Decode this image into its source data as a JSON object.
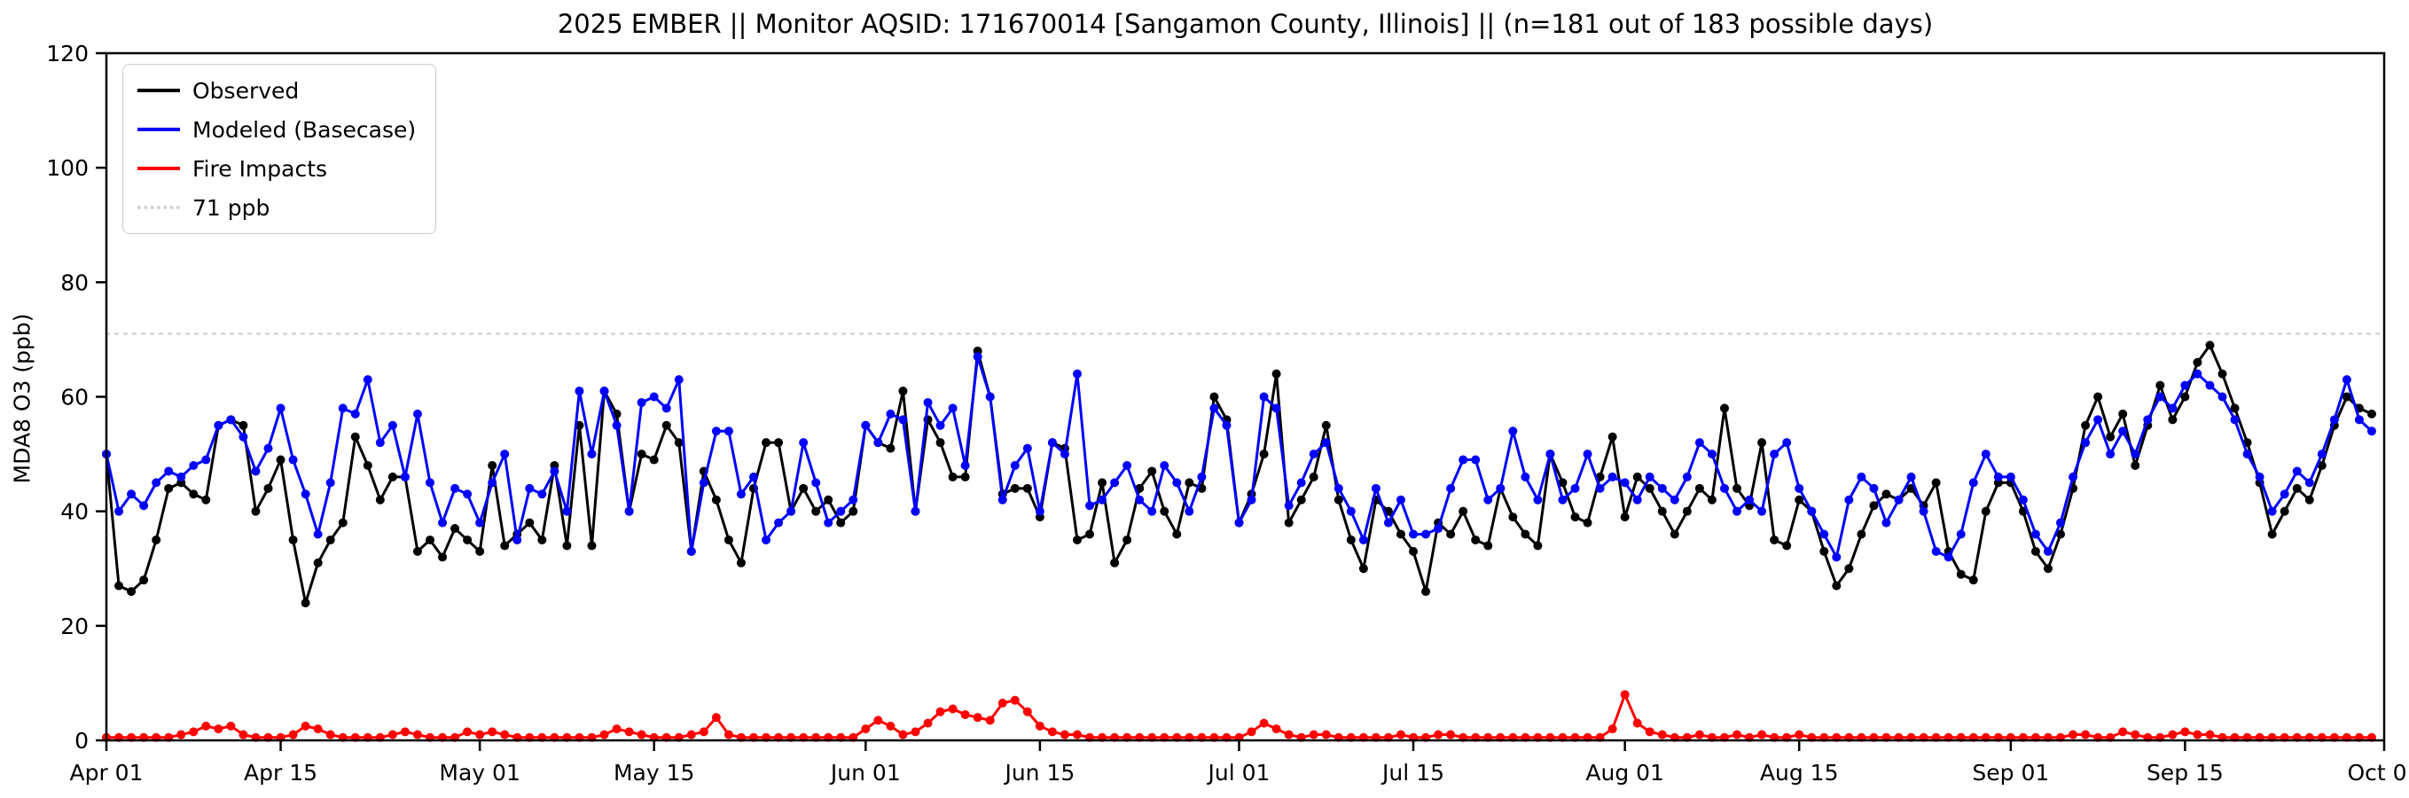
{
  "chart_data": {
    "type": "line",
    "title": "2025 EMBER || Monitor AQSID: 171670014 [Sangamon County, Illinois] || (n=181 out of 183 possible days)",
    "ylabel": "MDA8 O3 (ppb)",
    "xlabel": "",
    "ylim": [
      0,
      120
    ],
    "xlim_days": [
      0,
      183
    ],
    "grid": false,
    "legend_position": "upper-left",
    "yticks": [
      0,
      20,
      40,
      60,
      80,
      100,
      120
    ],
    "xticks": [
      {
        "day": 0,
        "label": "Apr 01"
      },
      {
        "day": 14,
        "label": "Apr 15"
      },
      {
        "day": 30,
        "label": "May 01"
      },
      {
        "day": 44,
        "label": "May 15"
      },
      {
        "day": 61,
        "label": "Jun 01"
      },
      {
        "day": 75,
        "label": "Jun 15"
      },
      {
        "day": 91,
        "label": "Jul 01"
      },
      {
        "day": 105,
        "label": "Jul 15"
      },
      {
        "day": 122,
        "label": "Aug 01"
      },
      {
        "day": 136,
        "label": "Aug 15"
      },
      {
        "day": 153,
        "label": "Sep 01"
      },
      {
        "day": 167,
        "label": "Sep 15"
      },
      {
        "day": 183,
        "label": "Oct 01"
      }
    ],
    "reference_line": {
      "value": 71,
      "label": "71 ppb",
      "color": "#d3d3d3",
      "style": "dotted"
    },
    "series": [
      {
        "name": "Observed",
        "color": "#000000",
        "values": [
          50,
          27,
          26,
          28,
          35,
          44,
          45,
          43,
          42,
          55,
          56,
          55,
          40,
          44,
          49,
          35,
          24,
          31,
          35,
          38,
          53,
          48,
          42,
          46,
          46,
          33,
          35,
          32,
          37,
          35,
          33,
          48,
          34,
          36,
          38,
          35,
          48,
          34,
          55,
          34,
          61,
          57,
          40,
          50,
          49,
          55,
          52,
          33,
          47,
          42,
          35,
          31,
          44,
          52,
          52,
          40,
          44,
          40,
          42,
          38,
          40,
          55,
          52,
          51,
          61,
          40,
          56,
          52,
          46,
          46,
          68,
          60,
          43,
          44,
          44,
          39,
          52,
          51,
          35,
          36,
          45,
          31,
          35,
          44,
          47,
          40,
          36,
          45,
          44,
          60,
          56,
          38,
          43,
          50,
          64,
          38,
          42,
          46,
          55,
          42,
          35,
          30,
          42,
          40,
          36,
          33,
          26,
          38,
          36,
          40,
          35,
          34,
          44,
          39,
          36,
          34,
          50,
          45,
          39,
          38,
          46,
          53,
          39,
          46,
          44,
          40,
          36,
          40,
          44,
          42,
          58,
          44,
          41,
          52,
          35,
          34,
          42,
          40,
          33,
          27,
          30,
          36,
          41,
          43,
          42,
          44,
          41,
          45,
          33,
          29,
          28,
          40,
          45,
          45,
          40,
          33,
          30,
          36,
          44,
          55,
          60,
          53,
          57,
          48,
          55,
          62,
          56,
          60,
          66,
          69,
          64,
          58,
          52,
          45,
          36,
          40,
          44,
          42,
          48,
          55,
          60,
          58,
          57
        ]
      },
      {
        "name": "Modeled (Basecase)",
        "color": "#0000ff",
        "values": [
          50,
          40,
          43,
          41,
          45,
          47,
          46,
          48,
          49,
          55,
          56,
          53,
          47,
          51,
          58,
          49,
          43,
          36,
          45,
          58,
          57,
          63,
          52,
          55,
          46,
          57,
          45,
          38,
          44,
          43,
          38,
          45,
          50,
          35,
          44,
          43,
          47,
          40,
          61,
          50,
          61,
          55,
          40,
          59,
          60,
          58,
          63,
          33,
          45,
          54,
          54,
          43,
          46,
          35,
          38,
          40,
          52,
          45,
          38,
          40,
          42,
          55,
          52,
          57,
          56,
          40,
          59,
          55,
          58,
          48,
          67,
          60,
          42,
          48,
          51,
          40,
          52,
          50,
          64,
          41,
          42,
          45,
          48,
          42,
          40,
          48,
          45,
          40,
          46,
          58,
          55,
          38,
          42,
          60,
          58,
          41,
          45,
          50,
          52,
          44,
          40,
          35,
          44,
          38,
          42,
          36,
          36,
          37,
          44,
          49,
          49,
          42,
          44,
          54,
          46,
          42,
          50,
          42,
          44,
          50,
          44,
          46,
          45,
          42,
          46,
          44,
          42,
          46,
          52,
          50,
          44,
          40,
          42,
          40,
          50,
          52,
          44,
          40,
          36,
          32,
          42,
          46,
          44,
          38,
          42,
          46,
          40,
          33,
          32,
          36,
          45,
          50,
          46,
          46,
          42,
          36,
          33,
          38,
          46,
          52,
          56,
          50,
          54,
          50,
          56,
          60,
          58,
          62,
          64,
          62,
          60,
          56,
          50,
          46,
          40,
          43,
          47,
          45,
          50,
          56,
          63,
          56,
          54
        ]
      },
      {
        "name": "Fire Impacts",
        "color": "#ff0000",
        "values": [
          0.5,
          0.5,
          0.5,
          0.5,
          0.5,
          0.5,
          1,
          1.5,
          2.5,
          2,
          2.5,
          1,
          0.5,
          0.5,
          0.5,
          1,
          2.5,
          2,
          1,
          0.5,
          0.5,
          0.5,
          0.5,
          1,
          1.5,
          1,
          0.5,
          0.5,
          0.5,
          1.5,
          1,
          1.5,
          1,
          0.5,
          0.5,
          0.5,
          0.5,
          0.5,
          0.5,
          0.5,
          1,
          2,
          1.5,
          1,
          0.5,
          0.5,
          0.5,
          1,
          1.5,
          4,
          1,
          0.5,
          0.5,
          0.5,
          0.5,
          0.5,
          0.5,
          0.5,
          0.5,
          0.5,
          0.5,
          2,
          3.5,
          2.5,
          1,
          1.5,
          3,
          5,
          5.5,
          4.5,
          4,
          3.5,
          6.5,
          7,
          5,
          2.5,
          1.5,
          1,
          1,
          0.5,
          0.5,
          0.5,
          0.5,
          0.5,
          0.5,
          0.5,
          0.5,
          0.5,
          0.5,
          0.5,
          0.5,
          0.5,
          1.5,
          3,
          2,
          1,
          0.5,
          1,
          1,
          0.5,
          0.5,
          0.5,
          0.5,
          0.5,
          1,
          0.5,
          0.5,
          1,
          1,
          0.5,
          0.5,
          0.5,
          0.5,
          0.5,
          0.5,
          0.5,
          0.5,
          0.5,
          0.5,
          0.5,
          0.5,
          2,
          8,
          3,
          1.5,
          1,
          0.5,
          0.5,
          1,
          0.5,
          0.5,
          1,
          0.5,
          1,
          0.5,
          0.5,
          1,
          0.5,
          0.5,
          0.5,
          0.5,
          0.5,
          0.5,
          0.5,
          0.5,
          0.5,
          0.5,
          0.5,
          0.5,
          0.5,
          0.5,
          0.5,
          0.5,
          0.5,
          0.5,
          0.5,
          0.5,
          0.5,
          1,
          1,
          0.5,
          0.5,
          1.5,
          1,
          0.5,
          0.5,
          1,
          1.5,
          1,
          1,
          0.5,
          0.5,
          0.5,
          0.5,
          0.5,
          0.5,
          0.5,
          0.5,
          0.5,
          0.5,
          0.5,
          0.5,
          0.5
        ]
      }
    ]
  }
}
